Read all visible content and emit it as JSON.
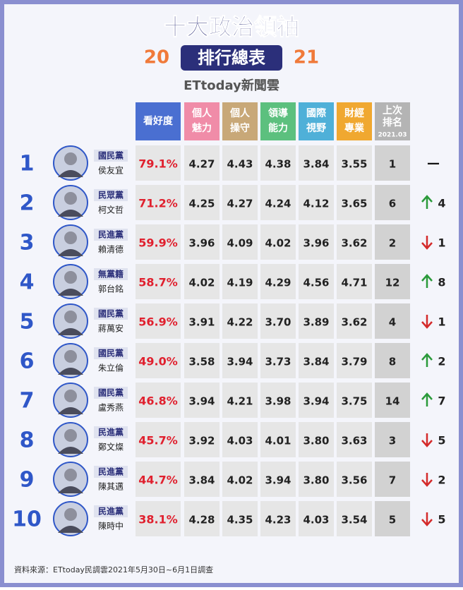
{
  "header": {
    "title": "十大政治領袖",
    "year_left": "20",
    "year_right": "21",
    "subtitle": "排行總表",
    "brand": "ETtoday新聞雲"
  },
  "table": {
    "columns": [
      [
        "看好度"
      ],
      [
        "個人",
        "魅力"
      ],
      [
        "個人",
        "操守"
      ],
      [
        "領導",
        "能力"
      ],
      [
        "國際",
        "視野"
      ],
      [
        "財經",
        "專業"
      ],
      [
        "上次",
        "排名",
        "2021.03"
      ]
    ],
    "rows": [
      {
        "rank": "1",
        "party": "國民黨",
        "name": "侯友宜",
        "cells": [
          "79.1%",
          "4.27",
          "4.43",
          "4.38",
          "3.84",
          "3.55"
        ],
        "prev_rank": "1",
        "change": "—"
      },
      {
        "rank": "2",
        "party": "民眾黨",
        "name": "柯文哲",
        "cells": [
          "71.2%",
          "4.25",
          "4.27",
          "4.24",
          "4.12",
          "3.65"
        ],
        "prev_rank": "6",
        "trend": "up",
        "change": "4"
      },
      {
        "rank": "3",
        "party": "民進黨",
        "name": "賴清德",
        "cells": [
          "59.9%",
          "3.96",
          "4.09",
          "4.02",
          "3.96",
          "3.62"
        ],
        "prev_rank": "2",
        "trend": "down",
        "change": "1"
      },
      {
        "rank": "4",
        "party": "無黨籍",
        "name": "郭台銘",
        "cells": [
          "58.7%",
          "4.02",
          "4.19",
          "4.29",
          "4.56",
          "4.71"
        ],
        "prev_rank": "12",
        "trend": "up",
        "change": "8"
      },
      {
        "rank": "5",
        "party": "國民黨",
        "name": "蔣萬安",
        "cells": [
          "56.9%",
          "3.91",
          "4.22",
          "3.70",
          "3.89",
          "3.62"
        ],
        "prev_rank": "4",
        "trend": "down",
        "change": "1"
      },
      {
        "rank": "6",
        "party": "國民黨",
        "name": "朱立倫",
        "cells": [
          "49.0%",
          "3.58",
          "3.94",
          "3.73",
          "3.84",
          "3.79"
        ],
        "prev_rank": "8",
        "trend": "up",
        "change": "2"
      },
      {
        "rank": "7",
        "party": "國民黨",
        "name": "盧秀燕",
        "cells": [
          "46.8%",
          "3.94",
          "4.21",
          "3.98",
          "3.94",
          "3.75"
        ],
        "prev_rank": "14",
        "trend": "up",
        "change": "7"
      },
      {
        "rank": "8",
        "party": "民進黨",
        "name": "鄭文燦",
        "cells": [
          "45.7%",
          "3.92",
          "4.03",
          "4.01",
          "3.80",
          "3.63"
        ],
        "prev_rank": "3",
        "trend": "down",
        "change": "5"
      },
      {
        "rank": "9",
        "party": "民進黨",
        "name": "陳其邁",
        "cells": [
          "44.7%",
          "3.84",
          "4.02",
          "3.94",
          "3.80",
          "3.56"
        ],
        "prev_rank": "7",
        "trend": "down",
        "change": "2"
      },
      {
        "rank": "10",
        "party": "民進黨",
        "name": "陳時中",
        "cells": [
          "38.1%",
          "4.28",
          "4.35",
          "4.23",
          "4.03",
          "3.54"
        ],
        "prev_rank": "5",
        "trend": "down",
        "change": "5"
      }
    ]
  },
  "footer": {
    "source": "資料來源：ETtoday民調雲2021年5月30日~6月1日調查"
  }
}
